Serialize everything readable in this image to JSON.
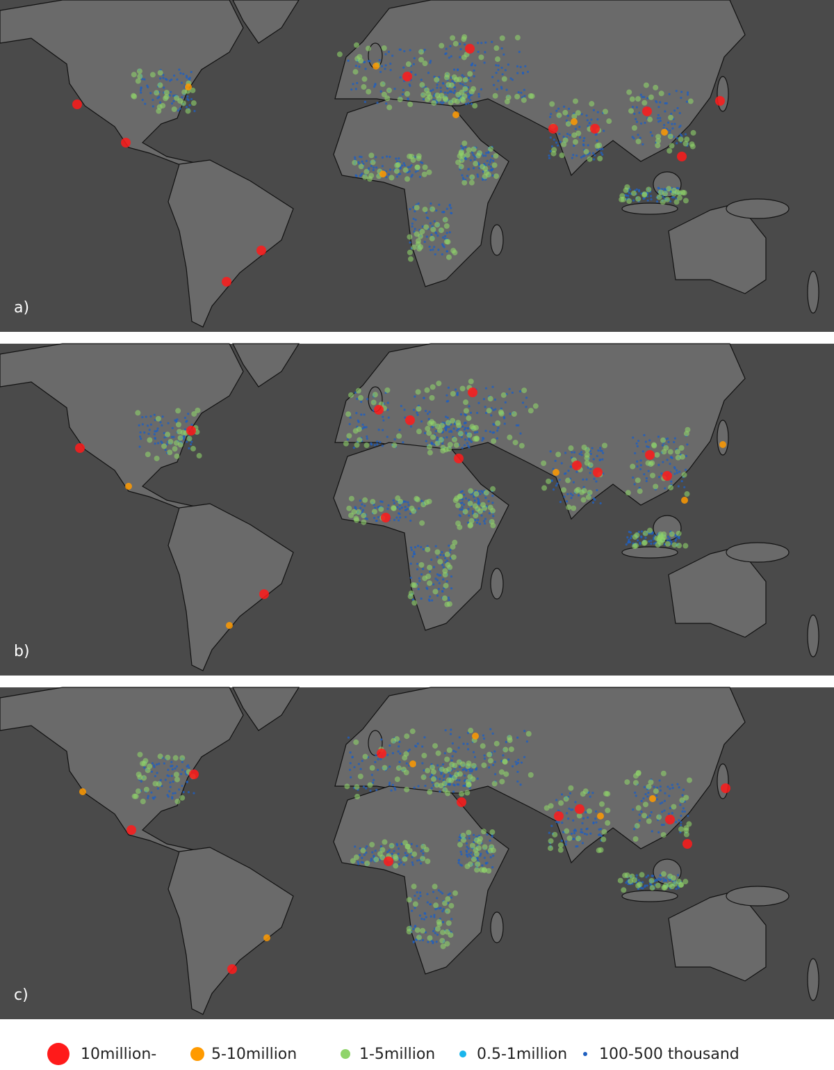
{
  "panels": [
    {
      "label": "a)"
    },
    {
      "label": "b)"
    },
    {
      "label": "c)"
    }
  ],
  "legend": [
    {
      "label": "10million-",
      "color": "#ff1a1a"
    },
    {
      "label": "5-10million",
      "color": "#ff9a00"
    },
    {
      "label": "1-5million",
      "color": "#8fd46a"
    },
    {
      "label": "0.5-1million",
      "color": "#19b5ec"
    },
    {
      "label": "100-500 thousand",
      "color": "#1f5fbf"
    }
  ]
}
